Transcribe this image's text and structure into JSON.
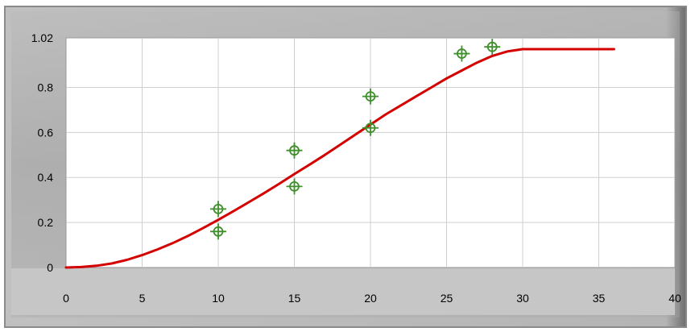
{
  "chart_data": {
    "type": "scatter",
    "xlim": [
      0,
      40
    ],
    "ylim": [
      0,
      1.02
    ],
    "x_ticks": [
      "0",
      "5",
      "10",
      "15",
      "20",
      "25",
      "30",
      "35",
      "40"
    ],
    "y_ticks": [
      "0",
      "0.2",
      "0.4",
      "0.6",
      "0.8",
      "1.02"
    ],
    "grid": true,
    "series": [
      {
        "type": "scatter",
        "marker": "crosshair-circle",
        "color": "#3f8f2a",
        "points": [
          {
            "x": 10,
            "y": 0.26
          },
          {
            "x": 10,
            "y": 0.16
          },
          {
            "x": 15,
            "y": 0.52
          },
          {
            "x": 15,
            "y": 0.36
          },
          {
            "x": 20,
            "y": 0.76
          },
          {
            "x": 20,
            "y": 0.62
          },
          {
            "x": 26,
            "y": 0.95
          },
          {
            "x": 28,
            "y": 0.98
          }
        ]
      },
      {
        "type": "line",
        "color": "#d40000",
        "x": [
          0,
          1,
          2,
          3,
          4,
          5,
          6,
          7,
          8,
          9,
          10,
          11,
          12,
          13,
          14,
          15,
          16,
          17,
          18,
          19,
          20,
          21,
          22,
          23,
          24,
          25,
          26,
          27,
          28,
          29,
          30,
          31,
          32,
          33,
          34,
          35,
          36
        ],
        "y": [
          0,
          0.002,
          0.008,
          0.018,
          0.034,
          0.055,
          0.08,
          0.108,
          0.14,
          0.175,
          0.212,
          0.25,
          0.29,
          0.33,
          0.372,
          0.415,
          0.457,
          0.5,
          0.545,
          0.59,
          0.635,
          0.68,
          0.72,
          0.76,
          0.8,
          0.84,
          0.875,
          0.91,
          0.94,
          0.96,
          0.97,
          0.97,
          0.97,
          0.97,
          0.97,
          0.97,
          0.97
        ]
      }
    ]
  }
}
